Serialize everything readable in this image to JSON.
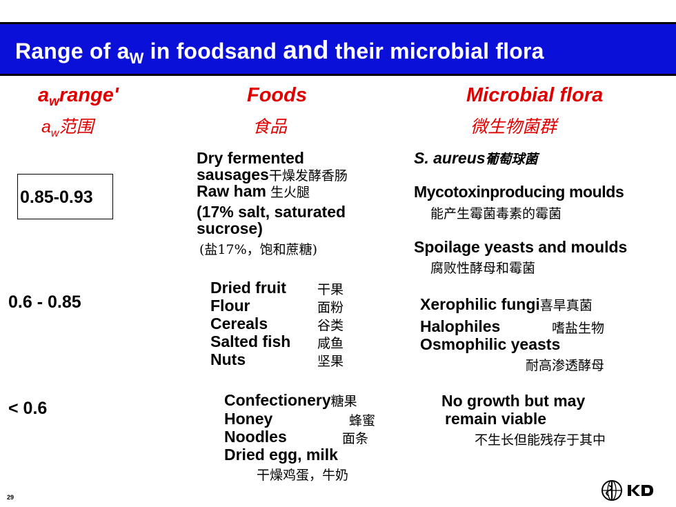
{
  "slide": {
    "title": {
      "pre": "Range of a",
      "sub": "W",
      "mid": " in foodsand ",
      "big": "and",
      "post": " their microbial flora"
    },
    "page_number": "29",
    "logo_icon": "who-emblem-icon",
    "logo_text_icon": "kd-logo-icon",
    "colors": {
      "title_bar": "#0a10d8",
      "header_red": "#e00000"
    }
  },
  "headers": {
    "range": {
      "main": "a",
      "sub": "w",
      "rest": "range'",
      "cn_lat": "a",
      "cn_sub": "w",
      "cn": "范围"
    },
    "foods": {
      "en": "Foods",
      "cn": "食品"
    },
    "flora": {
      "en": "Microbial flora",
      "cn": "微生物菌群"
    }
  },
  "rows": {
    "r1": {
      "range": "0.85-0.93",
      "foods": {
        "l1": "Dry fermented",
        "l2": " sausages",
        "l2_cn": "干燥发酵香肠",
        "l3": "Raw ham",
        "l3_cn": " 生火腿",
        "l4": " (17% salt, saturated",
        "l5": "sucrose)",
        "l6": "(盐17%，饱和蔗糖)"
      },
      "flora": {
        "a": "S. aureus",
        "a_cn": "葡萄球菌",
        "b": "Mycotoxinproducing moulds",
        "b_cn": "能产生霉菌毒素的霉菌",
        "c": "Spoilage yeasts and moulds",
        "c_cn": "腐败性酵母和霉菌"
      }
    },
    "r2": {
      "range": "0.6 - 0.85",
      "foods": [
        {
          "en": "Dried fruit",
          "cn": "干果"
        },
        {
          "en": "Flour",
          "cn": "面粉"
        },
        {
          "en": "Cereals",
          "cn": "谷类"
        },
        {
          "en": "Salted fish",
          "cn": "咸鱼"
        },
        {
          "en": "Nuts",
          "cn": "坚果"
        }
      ],
      "flora": {
        "a": "Xerophilic fungi",
        "a_cn": "喜旱真菌",
        "b": "Halophiles",
        "b_cn": "嗜盐生物",
        "c": "Osmophilic yeasts",
        "c_cn": "耐高渗透酵母"
      }
    },
    "r3": {
      "range": "< 0.6",
      "foods": {
        "a": "Confectionery",
        "a_cn": "糖果",
        "b": "Honey",
        "b_cn": "蜂蜜",
        "c": "Noodles",
        "c_cn": "面条",
        "d": "Dried egg, milk",
        "d_cn": "干燥鸡蛋，牛奶"
      },
      "flora": {
        "l1": "No growth but may",
        "l2": "remain viable",
        "cn": "不生长但能残存于其中"
      }
    }
  }
}
